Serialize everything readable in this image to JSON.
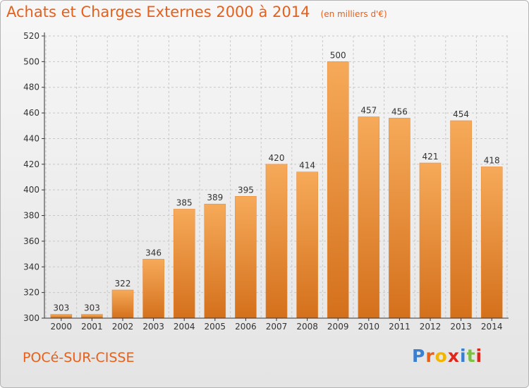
{
  "header": {
    "title": "Achats et Charges Externes 2000 à 2014",
    "subtitle": "(en milliers d'€)"
  },
  "footer": {
    "commune": "POCé-SUR-CISSE",
    "logo_text": "Proxiti",
    "logo_colors": [
      "#3a7fd0",
      "#e85f19",
      "#f2b600",
      "#e0261a",
      "#3a7fd0",
      "#7cc143",
      "#e0261a"
    ]
  },
  "colors": {
    "bar_top": "#f6aa59",
    "bar_bottom": "#d4701c",
    "bar_outline": "#e6852f",
    "grid": "#c8c8c8",
    "axis": "#333333",
    "text": "#333333"
  },
  "chart_data": {
    "type": "bar",
    "title": "Achats et Charges Externes 2000 à 2014",
    "subtitle": "(en milliers d'€)",
    "categories": [
      "2000",
      "2001",
      "2002",
      "2003",
      "2004",
      "2005",
      "2006",
      "2007",
      "2008",
      "2009",
      "2010",
      "2011",
      "2012",
      "2013",
      "2014"
    ],
    "values": [
      303,
      303,
      322,
      346,
      385,
      389,
      395,
      420,
      414,
      500,
      457,
      456,
      421,
      454,
      418
    ],
    "value_labels": [
      "303",
      "303",
      "322",
      "346",
      "385",
      "389",
      "395",
      "420",
      "414",
      "500",
      "457",
      "456",
      "421",
      "454",
      "418"
    ],
    "ylim": [
      300,
      520
    ],
    "yticks": [
      300,
      320,
      340,
      360,
      380,
      400,
      420,
      440,
      460,
      480,
      500,
      520
    ],
    "ytick_labels": [
      "300",
      "320",
      "340",
      "360",
      "380",
      "400",
      "420",
      "440",
      "460",
      "480",
      "500",
      "520"
    ],
    "grid": true,
    "legend": "none",
    "xlabel": "",
    "ylabel": ""
  }
}
